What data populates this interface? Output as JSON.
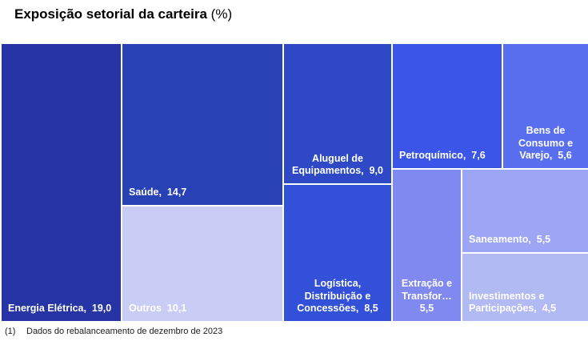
{
  "title": {
    "main": "Exposição setorial da carteira",
    "suffix": " (%)"
  },
  "footnote": {
    "marker": "(1)",
    "text": "Dados do rebalanceamento de dezembro de 2023"
  },
  "chart_data": {
    "type": "treemap",
    "title": "Exposição setorial da carteira (%)",
    "unit": "%",
    "decimal_separator": ",",
    "nodes": [
      {
        "id": "energia-eletrica",
        "name": "Energia Elétrica",
        "value": 19.0,
        "value_display": "19,0",
        "lines": [
          "Energia Elétrica,  19,0"
        ],
        "align": "left",
        "color": "#2634a6"
      },
      {
        "id": "saude",
        "name": "Saúde",
        "value": 14.7,
        "value_display": "14,7",
        "lines": [
          "Saúde,  14,7"
        ],
        "align": "left",
        "color": "#2841b5"
      },
      {
        "id": "outros",
        "name": "Outros",
        "value": 10.1,
        "value_display": "10,1",
        "lines": [
          "Outros  10,1"
        ],
        "align": "left",
        "color": "#c9cdf6"
      },
      {
        "id": "aluguel-equipamentos",
        "name": "Aluguel de Equipamentos",
        "value": 9.0,
        "value_display": "9,0",
        "lines": [
          "Aluguel de",
          "Equipamentos,  9,0"
        ],
        "align": "center",
        "color": "#2f49c6"
      },
      {
        "id": "logistica-distribuicao-concessoes",
        "name": "Logística, Distribuição e Concessões",
        "value": 8.5,
        "value_display": "8,5",
        "lines": [
          "Logística,",
          "Distribuição e",
          "Concessões,  8,5"
        ],
        "align": "center",
        "color": "#3350d8"
      },
      {
        "id": "petroquimico",
        "name": "Petroquímico",
        "value": 7.6,
        "value_display": "7,6",
        "lines": [
          "Petroquímico,  7,6"
        ],
        "align": "left",
        "color": "#3a55e8"
      },
      {
        "id": "bens-consumo-varejo",
        "name": "Bens de Consumo e Varejo",
        "value": 5.6,
        "value_display": "5,6",
        "lines": [
          "Bens de",
          "Consumo e",
          "Varejo,  5,6"
        ],
        "align": "center",
        "color": "#5a6ff0"
      },
      {
        "id": "extracao-transformacao",
        "name": "Extração e Transformação",
        "value": 5.5,
        "value_display": "5,5",
        "lines": [
          "Extração e",
          "Transfor…",
          "5,5"
        ],
        "align": "center",
        "color": "#8089f0"
      },
      {
        "id": "saneamento",
        "name": "Saneamento",
        "value": 5.5,
        "value_display": "5,5",
        "lines": [
          "Saneamento,  5,5"
        ],
        "align": "left",
        "color": "#9da5f5"
      },
      {
        "id": "investimentos-participacoes",
        "name": "Investimentos e Participações",
        "value": 4.5,
        "value_display": "4,5",
        "lines": [
          "Investimentos e",
          "Participações,  4,5"
        ],
        "align": "left",
        "color": "#b2baf3"
      }
    ]
  }
}
